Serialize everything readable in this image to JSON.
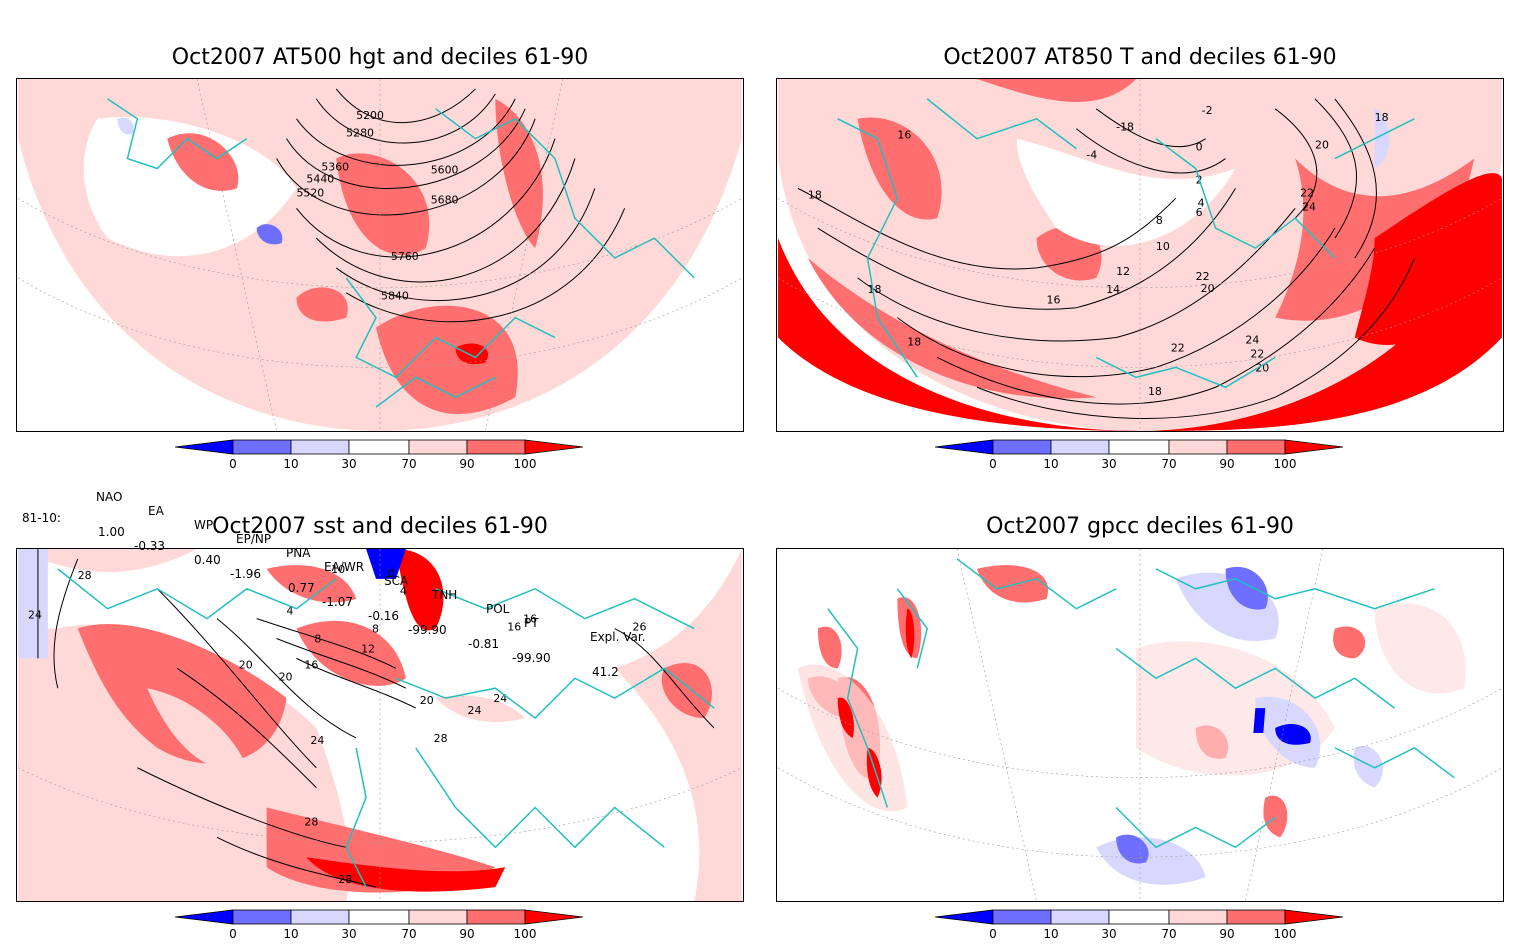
{
  "panels": [
    {
      "id": "p1",
      "title": "Oct2007 AT500 hgt and deciles 61-90",
      "contour_labels": [
        "5200",
        "5280",
        "5360",
        "5440",
        "5520",
        "5600",
        "5680",
        "5760",
        "5840"
      ]
    },
    {
      "id": "p2",
      "title": "Oct2007 AT850 T and deciles 61-90",
      "contour_labels": [
        "18",
        "16",
        "18",
        "18",
        "18",
        "16",
        "14",
        "12",
        "10",
        "8",
        "6",
        "4",
        "2",
        "0",
        "-2",
        "-4",
        "-18",
        "20",
        "22",
        "24",
        "22",
        "20",
        "22",
        "24",
        "22",
        "20",
        "18"
      ]
    },
    {
      "id": "p3",
      "title": "Oct2007 sst and deciles 61-90",
      "contour_labels": [
        "28",
        "24",
        "4",
        "8",
        "12",
        "16",
        "20",
        "24",
        "28",
        "28",
        "10",
        "0",
        "4",
        "8",
        "16",
        "20",
        "24",
        "20",
        "24",
        "28",
        "16",
        "26"
      ]
    },
    {
      "id": "p4",
      "title": "Oct2007 gpcc deciles 61-90",
      "contour_labels": []
    }
  ],
  "colorbar": {
    "ticks": [
      "0",
      "10",
      "30",
      "70",
      "90",
      "100"
    ],
    "colors": {
      "deep_blue": "#0000ff",
      "mid_blue": "#6f6fff",
      "light_blue": "#d8d8ff",
      "white": "#ffffff",
      "light_red": "#ffd8d8",
      "mid_red": "#ff6f6f",
      "deep_red": "#ff0000"
    }
  },
  "indices": {
    "header": [
      "NAO",
      "EA",
      "WP",
      "EP/NP",
      "PNA",
      "EA/WR",
      "SCA",
      "TNH",
      "POL",
      "PT",
      "Expl. Var."
    ],
    "row_label": "81-10:",
    "values": [
      "1.00",
      "-0.33",
      "0.40",
      "-1.96",
      "0.77",
      "-1.07",
      "-0.16",
      "-99.90",
      "-0.81",
      "-99.90",
      "41.2"
    ]
  },
  "map_colors": {
    "coast": "#20c0c0",
    "contour": "#000000",
    "grid": "#999999"
  }
}
